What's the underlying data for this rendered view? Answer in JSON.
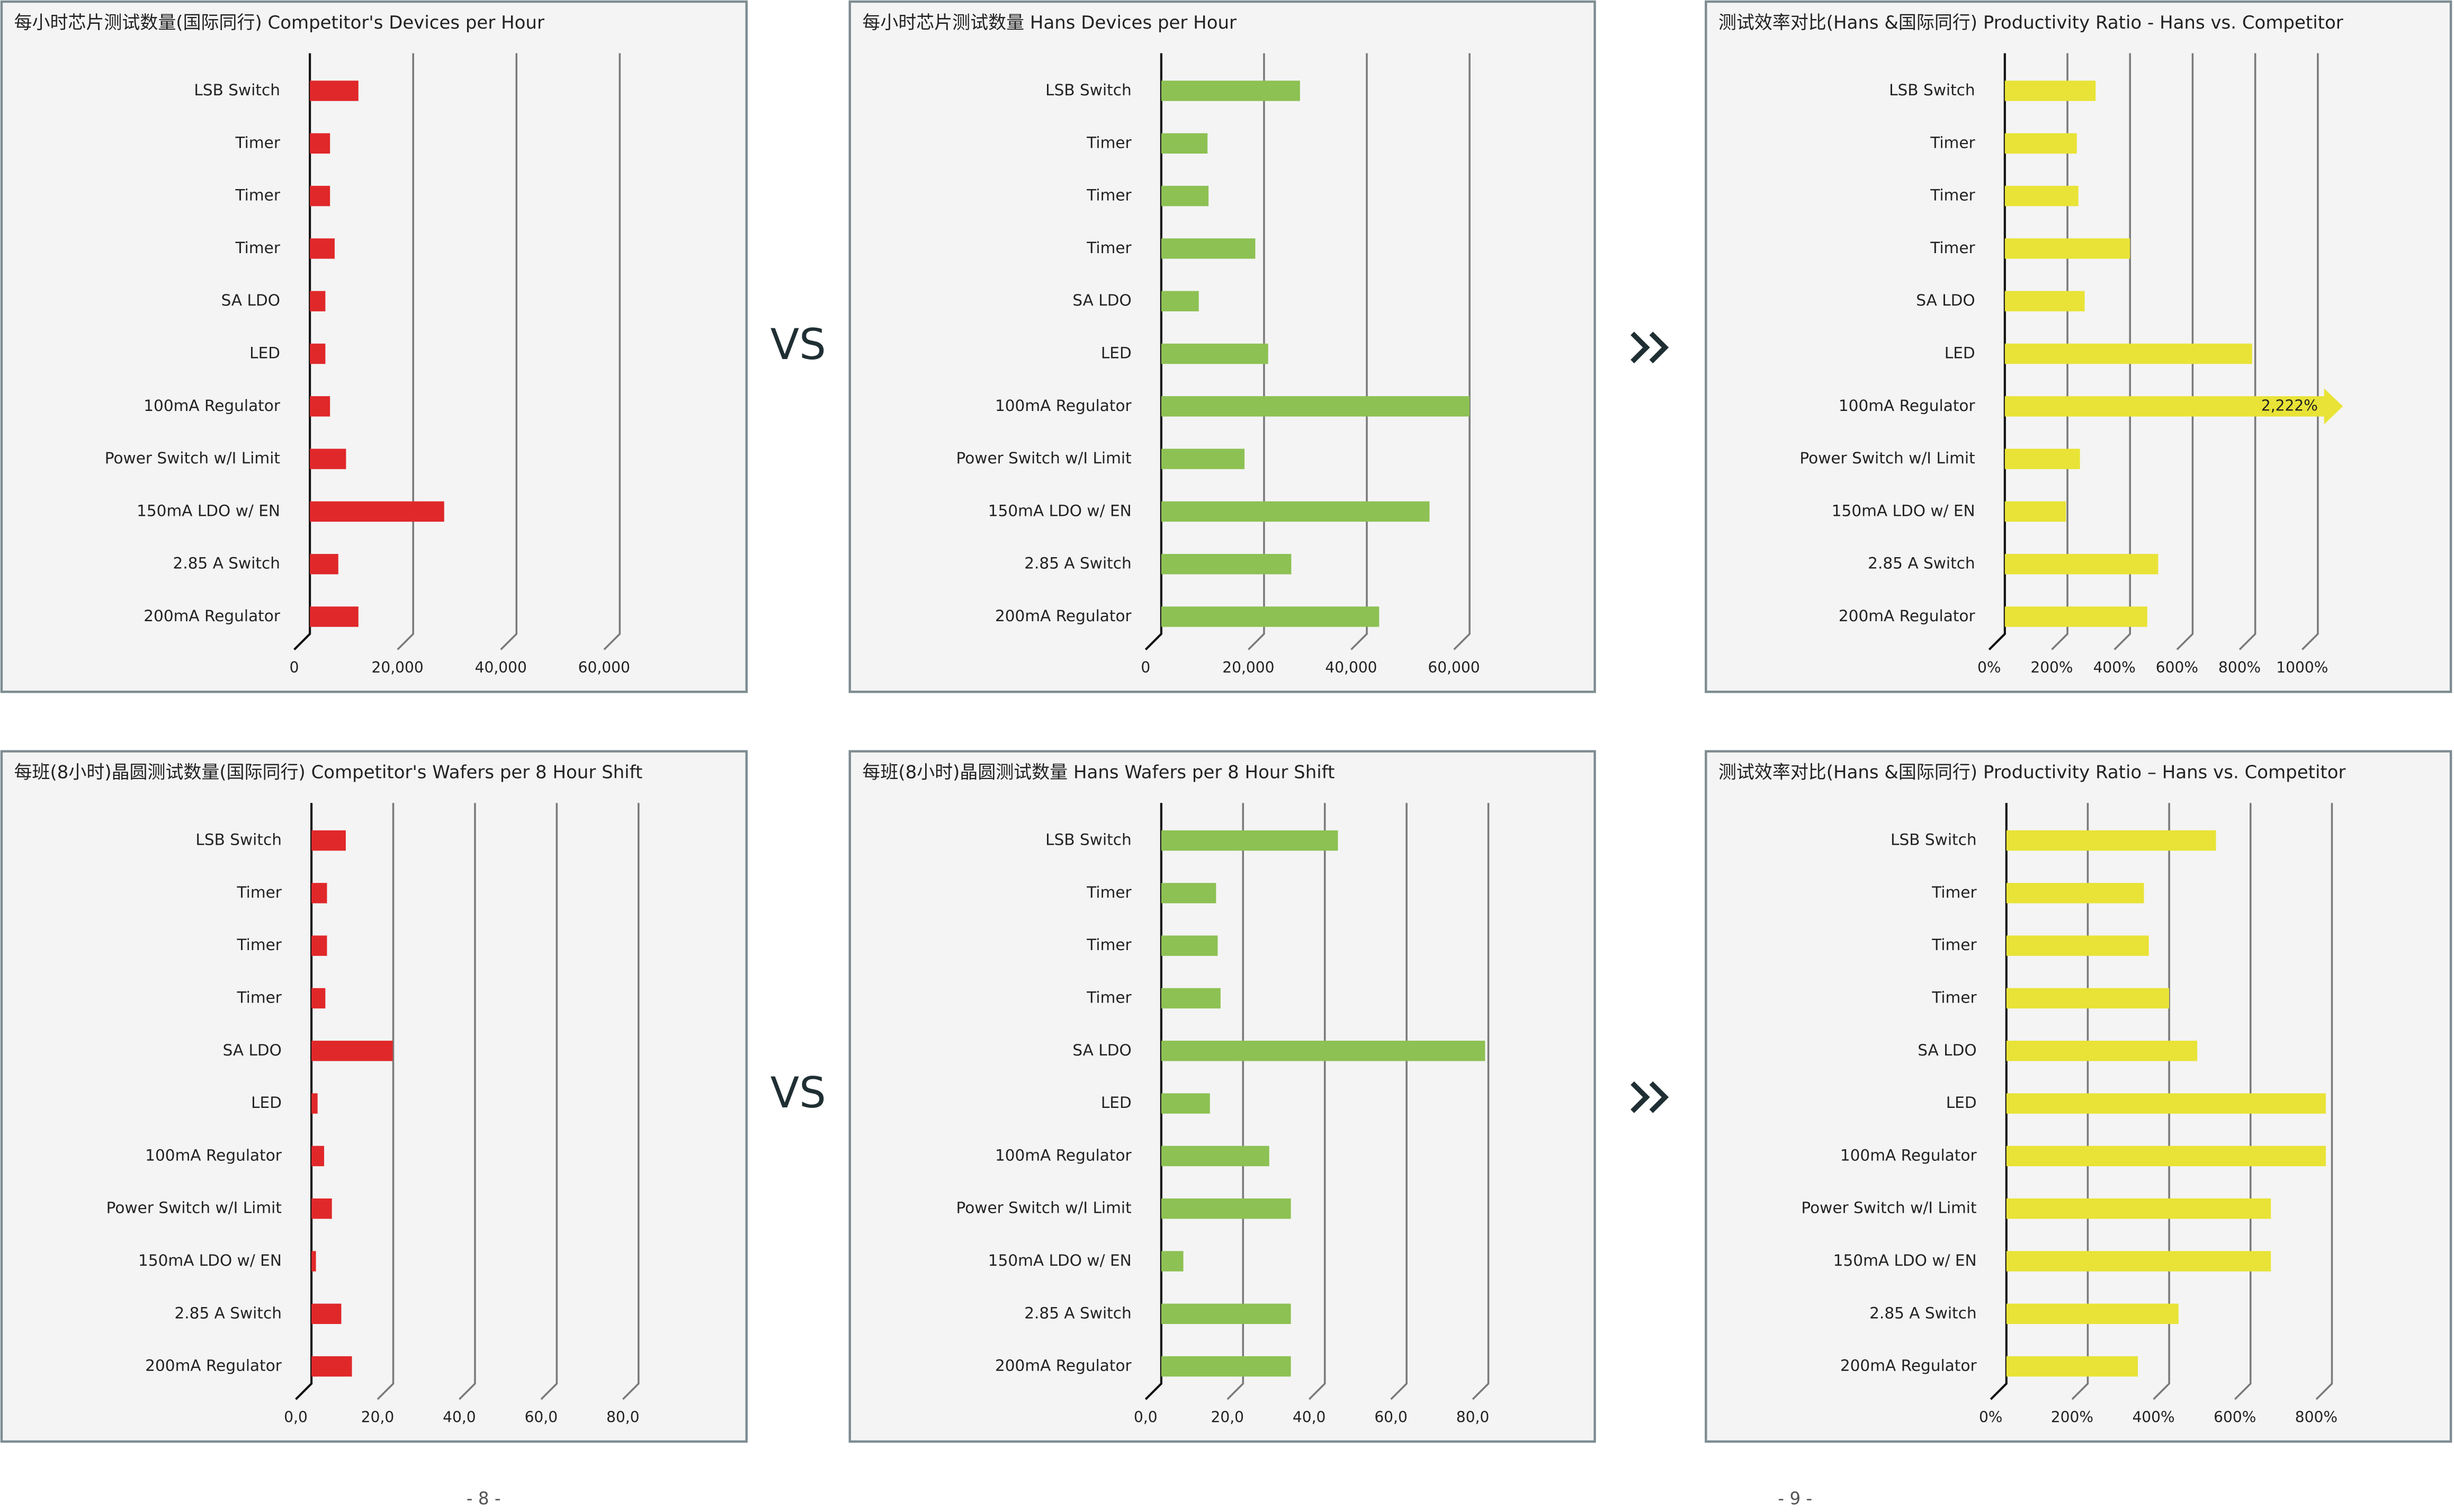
{
  "chart_data": [
    {
      "type": "bar",
      "orientation": "horizontal",
      "title": "每小时芯片测试数量(国际同行)  Competitor's Devices per Hour",
      "color": "#e0282a",
      "categories": [
        "LSB Switch",
        "Timer",
        "Timer",
        "Timer",
        "SA LDO",
        "LED",
        "100mA Regulator",
        "Power Switch w/I Limit",
        "150mA LDO w/ EN",
        "2.85 A Switch",
        "200mA Regulator"
      ],
      "values": [
        9400,
        3900,
        3900,
        4800,
        3000,
        3000,
        3900,
        7000,
        26000,
        5500,
        9400
      ],
      "xlim": [
        0,
        60000
      ],
      "xticks": [
        0,
        {
          "value": 20000,
          "label": "20,000"
        },
        {
          "value": 40000,
          "label": "40,000"
        },
        {
          "value": 60000,
          "label": "60,000"
        }
      ],
      "grid": true
    },
    {
      "type": "bar",
      "orientation": "horizontal",
      "title": "每小时芯片测试数量  Hans Devices per Hour",
      "color": "#8dc153",
      "categories": [
        "LSB Switch",
        "Timer",
        "Timer",
        "Timer",
        "SA LDO",
        "LED",
        "100mA Regulator",
        "Power Switch w/I Limit",
        "150mA LDO w/ EN",
        "2.85 A Switch",
        "200mA Regulator"
      ],
      "values": [
        27000,
        9000,
        9200,
        18300,
        7300,
        20800,
        60000,
        16200,
        52200,
        25300,
        42400
      ],
      "xlim": [
        0,
        60000
      ],
      "xticks": [
        0,
        {
          "value": 20000,
          "label": "20,000"
        },
        {
          "value": 40000,
          "label": "40,000"
        },
        {
          "value": 60000,
          "label": "60,000"
        }
      ],
      "grid": true
    },
    {
      "type": "bar",
      "orientation": "horizontal",
      "title": "测试效率对比(Hans &国际同行)  Productivity Ratio - Hans vs. Competitor",
      "color": "#e8e336",
      "categories": [
        "LSB Switch",
        "Timer",
        "Timer",
        "Timer",
        "SA LDO",
        "LED",
        "100mA Regulator",
        "Power Switch w/I Limit",
        "150mA LDO w/ EN",
        "2.85 A Switch",
        "200mA Regulator"
      ],
      "values": [
        290,
        230,
        235,
        400,
        255,
        790,
        2222,
        240,
        195,
        490,
        455
      ],
      "value_labels": [
        null,
        null,
        null,
        null,
        null,
        null,
        "2,222%",
        null,
        null,
        null,
        null
      ],
      "xlim": [
        0,
        1000
      ],
      "xticks": [
        {
          "value": 0,
          "label": "0%"
        },
        {
          "value": 200,
          "label": "200%"
        },
        {
          "value": 400,
          "label": "400%"
        },
        {
          "value": 600,
          "label": "600%"
        },
        {
          "value": 800,
          "label": "800%"
        },
        {
          "value": 1000,
          "label": "1000%"
        }
      ],
      "grid": true
    },
    {
      "type": "bar",
      "orientation": "horizontal",
      "title": "每班(8小时)晶圆测试数量(国际同行)  Competitor's Wafers per 8 Hour Shift",
      "color": "#e0282a",
      "categories": [
        "LSB Switch",
        "Timer",
        "Timer",
        "Timer",
        "SA LDO",
        "LED",
        "100mA Regulator",
        "Power Switch w/I Limit",
        "150mA LDO w/ EN",
        "2.85 A Switch",
        "200mA Regulator"
      ],
      "values": [
        8.4,
        3.8,
        3.8,
        3.4,
        19.9,
        1.5,
        3.1,
        5.0,
        1.1,
        7.3,
        9.9
      ],
      "xlim": [
        0,
        80
      ],
      "xticks": [
        {
          "value": 0,
          "label": "0,0"
        },
        {
          "value": 20,
          "label": "20,0"
        },
        {
          "value": 40,
          "label": "40,0"
        },
        {
          "value": 60,
          "label": "60,0"
        },
        {
          "value": 80,
          "label": "80,0"
        }
      ],
      "grid": true
    },
    {
      "type": "bar",
      "orientation": "horizontal",
      "title": "每班(8小时)晶圆测试数量  Hans Wafers per 8 Hour Shift",
      "color": "#8dc153",
      "categories": [
        "LSB Switch",
        "Timer",
        "Timer",
        "Timer",
        "SA LDO",
        "LED",
        "100mA Regulator",
        "Power Switch w/I Limit",
        "150mA LDO w/ EN",
        "2.85 A Switch",
        "200mA Regulator"
      ],
      "values": [
        43.2,
        13.4,
        13.8,
        14.5,
        79.2,
        11.9,
        26.4,
        31.7,
        5.4,
        31.7,
        31.7
      ],
      "xlim": [
        0,
        80
      ],
      "xticks": [
        {
          "value": 0,
          "label": "0,0"
        },
        {
          "value": 20,
          "label": "20,0"
        },
        {
          "value": 40,
          "label": "40,0"
        },
        {
          "value": 60,
          "label": "60,0"
        },
        {
          "value": 80,
          "label": "80,0"
        }
      ],
      "grid": true
    },
    {
      "type": "bar",
      "orientation": "horizontal",
      "title": "测试效率对比(Hans &国际同行)  Productivity Ratio – Hans vs. Competitor",
      "color": "#e8e336",
      "categories": [
        "LSB Switch",
        "Timer",
        "Timer",
        "Timer",
        "SA LDO",
        "LED",
        "100mA Regulator",
        "Power Switch w/I Limit",
        "150mA LDO w/ EN",
        "2.85 A Switch",
        "200mA Regulator"
      ],
      "values": [
        515,
        338,
        350,
        400,
        469,
        785,
        785,
        650,
        650,
        423,
        323
      ],
      "xlim": [
        0,
        800
      ],
      "xticks": [
        {
          "value": 0,
          "label": "0%"
        },
        {
          "value": 200,
          "label": "200%"
        },
        {
          "value": 400,
          "label": "400%"
        },
        {
          "value": 600,
          "label": "600%"
        },
        {
          "value": 800,
          "label": "800%"
        }
      ],
      "grid": true
    }
  ],
  "separators": [
    "VS",
    "VS"
  ],
  "page_numbers": [
    "- 8 -",
    "- 9 -"
  ]
}
